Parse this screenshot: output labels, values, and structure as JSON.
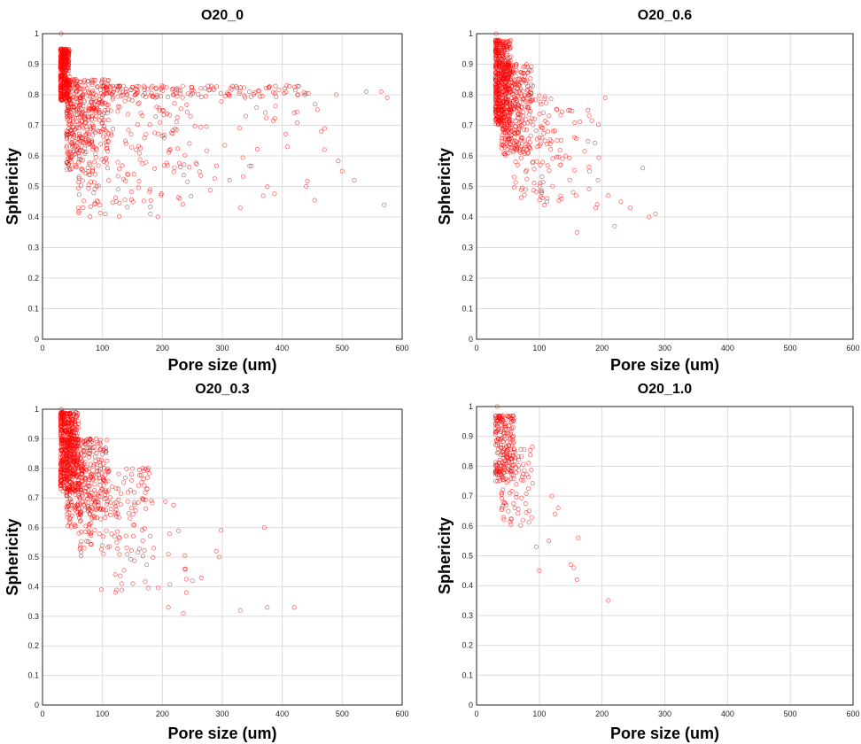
{
  "figure": {
    "point_color": "#ff0000",
    "marker": "open-circle"
  },
  "chart_data": [
    {
      "type": "scatter",
      "title": "O20_0",
      "xlabel": "Pore size (um)",
      "ylabel": "Sphericity",
      "xlim": [
        0,
        600
      ],
      "ylim": [
        0,
        1
      ],
      "xticks": [
        0,
        100,
        200,
        300,
        400,
        500,
        600
      ],
      "yticks": [
        0,
        0.1,
        0.2,
        0.3,
        0.4,
        0.5,
        0.6,
        0.7,
        0.8,
        0.9,
        1
      ],
      "grid": true,
      "cloud": [
        {
          "x": [
            30,
            45
          ],
          "y": [
            0.78,
            0.95
          ],
          "n": 320
        },
        {
          "x": [
            40,
            110
          ],
          "y": [
            0.55,
            0.85
          ],
          "n": 360
        },
        {
          "x": [
            60,
            260
          ],
          "y": [
            0.4,
            0.8
          ],
          "n": 200
        },
        {
          "x": [
            100,
            450
          ],
          "y": [
            0.79,
            0.83
          ],
          "n": 150
        },
        {
          "x": [
            200,
            520
          ],
          "y": [
            0.45,
            0.78
          ],
          "n": 55
        }
      ],
      "points": [
        {
          "x": 31,
          "y": 1.0
        },
        {
          "x": 60,
          "y": 0.43
        },
        {
          "x": 105,
          "y": 0.41
        },
        {
          "x": 180,
          "y": 0.41
        },
        {
          "x": 330,
          "y": 0.43
        },
        {
          "x": 440,
          "y": 0.5
        },
        {
          "x": 500,
          "y": 0.55
        },
        {
          "x": 520,
          "y": 0.52
        },
        {
          "x": 540,
          "y": 0.81
        },
        {
          "x": 570,
          "y": 0.44
        },
        {
          "x": 575,
          "y": 0.79
        },
        {
          "x": 565,
          "y": 0.81
        },
        {
          "x": 490,
          "y": 0.8
        },
        {
          "x": 465,
          "y": 0.68
        }
      ]
    },
    {
      "type": "scatter",
      "title": "O20_0.6",
      "xlabel": "Pore size (um)",
      "ylabel": "Sphericity",
      "xlim": [
        0,
        600
      ],
      "ylim": [
        0,
        1
      ],
      "xticks": [
        0,
        100,
        200,
        300,
        400,
        500,
        600
      ],
      "yticks": [
        0,
        0.1,
        0.2,
        0.3,
        0.4,
        0.5,
        0.6,
        0.7,
        0.8,
        0.9,
        1
      ],
      "grid": true,
      "cloud": [
        {
          "x": [
            30,
            55
          ],
          "y": [
            0.7,
            0.98
          ],
          "n": 420
        },
        {
          "x": [
            40,
            90
          ],
          "y": [
            0.6,
            0.9
          ],
          "n": 300
        },
        {
          "x": [
            60,
            140
          ],
          "y": [
            0.45,
            0.8
          ],
          "n": 120
        },
        {
          "x": [
            100,
            200
          ],
          "y": [
            0.4,
            0.75
          ],
          "n": 40
        }
      ],
      "points": [
        {
          "x": 31,
          "y": 1.0
        },
        {
          "x": 160,
          "y": 0.35
        },
        {
          "x": 205,
          "y": 0.79
        },
        {
          "x": 210,
          "y": 0.47
        },
        {
          "x": 220,
          "y": 0.37
        },
        {
          "x": 230,
          "y": 0.45
        },
        {
          "x": 245,
          "y": 0.43
        },
        {
          "x": 265,
          "y": 0.56
        },
        {
          "x": 275,
          "y": 0.4
        },
        {
          "x": 285,
          "y": 0.41
        },
        {
          "x": 190,
          "y": 0.43
        },
        {
          "x": 180,
          "y": 0.55
        }
      ]
    },
    {
      "type": "scatter",
      "title": "O20_0.3",
      "xlabel": "Pore size (um)",
      "ylabel": "Sphericity",
      "xlim": [
        0,
        600
      ],
      "ylim": [
        0,
        1
      ],
      "xticks": [
        0,
        100,
        200,
        300,
        400,
        500,
        600
      ],
      "yticks": [
        0,
        0.1,
        0.2,
        0.3,
        0.4,
        0.5,
        0.6,
        0.7,
        0.8,
        0.9,
        1
      ],
      "grid": true,
      "cloud": [
        {
          "x": [
            30,
            60
          ],
          "y": [
            0.72,
            0.99
          ],
          "n": 450
        },
        {
          "x": [
            40,
            110
          ],
          "y": [
            0.6,
            0.9
          ],
          "n": 350
        },
        {
          "x": [
            60,
            180
          ],
          "y": [
            0.5,
            0.8
          ],
          "n": 150
        },
        {
          "x": [
            120,
            240
          ],
          "y": [
            0.38,
            0.7
          ],
          "n": 50
        }
      ],
      "points": [
        {
          "x": 31,
          "y": 1.0
        },
        {
          "x": 98,
          "y": 0.39
        },
        {
          "x": 210,
          "y": 0.33
        },
        {
          "x": 235,
          "y": 0.31
        },
        {
          "x": 240,
          "y": 0.38
        },
        {
          "x": 250,
          "y": 0.42
        },
        {
          "x": 265,
          "y": 0.43
        },
        {
          "x": 295,
          "y": 0.5
        },
        {
          "x": 298,
          "y": 0.59
        },
        {
          "x": 330,
          "y": 0.32
        },
        {
          "x": 370,
          "y": 0.6
        },
        {
          "x": 375,
          "y": 0.33
        },
        {
          "x": 420,
          "y": 0.33
        },
        {
          "x": 290,
          "y": 0.52
        }
      ]
    },
    {
      "type": "scatter",
      "title": "O20_1.0",
      "xlabel": "Pore size (um)",
      "ylabel": "Sphericity",
      "xlim": [
        0,
        600
      ],
      "ylim": [
        0,
        1
      ],
      "xticks": [
        0,
        100,
        200,
        300,
        400,
        500,
        600
      ],
      "yticks": [
        0,
        0.1,
        0.2,
        0.3,
        0.4,
        0.5,
        0.6,
        0.7,
        0.8,
        0.9,
        1
      ],
      "grid": true,
      "cloud": [
        {
          "x": [
            30,
            60
          ],
          "y": [
            0.75,
            0.97
          ],
          "n": 180
        },
        {
          "x": [
            40,
            90
          ],
          "y": [
            0.6,
            0.87
          ],
          "n": 90
        }
      ],
      "points": [
        {
          "x": 33,
          "y": 1.0
        },
        {
          "x": 95,
          "y": 0.53
        },
        {
          "x": 100,
          "y": 0.45
        },
        {
          "x": 115,
          "y": 0.55
        },
        {
          "x": 120,
          "y": 0.7
        },
        {
          "x": 130,
          "y": 0.66
        },
        {
          "x": 150,
          "y": 0.47
        },
        {
          "x": 155,
          "y": 0.46
        },
        {
          "x": 160,
          "y": 0.42
        },
        {
          "x": 162,
          "y": 0.56
        },
        {
          "x": 210,
          "y": 0.35
        },
        {
          "x": 125,
          "y": 0.64
        }
      ]
    }
  ]
}
